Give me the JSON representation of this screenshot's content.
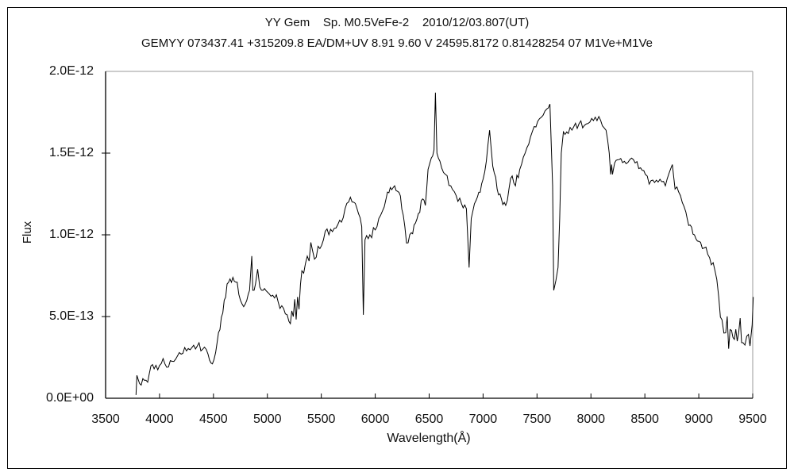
{
  "header": {
    "line1": "YY Gem    Sp. M0.5VeFe-2    2010/12/03.807(UT)",
    "line2": "GEMYY 073437.41 +315209.8 EA/DM+UV 8.91 9.60 V 24595.8172 0.81428254 07 M1Ve+M1Ve"
  },
  "chart_data": {
    "type": "line",
    "title": "YY Gem    Sp. M0.5VeFe-2    2010/12/03.807(UT)",
    "subtitle": "GEMYY 073437.41 +315209.8 EA/DM+UV 8.91 9.60 V 24595.8172 0.81428254 07 M1Ve+M1Ve",
    "xlabel": "Wavelength(Å)",
    "ylabel": "Flux",
    "grid": false,
    "legend": "none",
    "line_color": "#000000",
    "background_color": "#ffffff",
    "x_range": [
      3500,
      9500
    ],
    "y_range_1e12": [
      0,
      2.0
    ],
    "x_ticks": [
      3500,
      4000,
      4500,
      5000,
      5500,
      6000,
      6500,
      7000,
      7500,
      8000,
      8500,
      9000,
      9500
    ],
    "x_tick_labels": [
      "3500",
      "4000",
      "4500",
      "5000",
      "5500",
      "6000",
      "6500",
      "7000",
      "7500",
      "8000",
      "8500",
      "9000",
      "9500"
    ],
    "y_ticks_1e12": [
      0,
      0.5,
      1.0,
      1.5,
      2.0
    ],
    "y_tick_labels": [
      "0.0E+00",
      "5.0E-13",
      "1.0E-12",
      "1.5E-12",
      "2.0E-12"
    ],
    "points_format": [
      "wavelength_angstrom",
      "flux_units_of_1e-12",
      "noise_amplitude_1e-12"
    ],
    "series": [
      {
        "name": "spectrum",
        "points": [
          [
            3782,
            0.02,
            0
          ],
          [
            3790,
            0.14,
            0.05
          ],
          [
            3815,
            0.09,
            0.06
          ],
          [
            3845,
            0.12,
            0.06
          ],
          [
            3875,
            0.11,
            0.05
          ],
          [
            3905,
            0.15,
            0.05
          ],
          [
            3950,
            0.18,
            0.04
          ],
          [
            4000,
            0.2,
            0.04
          ],
          [
            4050,
            0.21,
            0.035
          ],
          [
            4100,
            0.23,
            0.035
          ],
          [
            4150,
            0.24,
            0.035
          ],
          [
            4200,
            0.27,
            0.03
          ],
          [
            4250,
            0.29,
            0.03
          ],
          [
            4300,
            0.31,
            0.03
          ],
          [
            4350,
            0.32,
            0.03
          ],
          [
            4400,
            0.3,
            0.025
          ],
          [
            4450,
            0.27,
            0.025
          ],
          [
            4490,
            0.21,
            0.02
          ],
          [
            4520,
            0.28,
            0.03
          ],
          [
            4560,
            0.42,
            0.04
          ],
          [
            4600,
            0.6,
            0.04
          ],
          [
            4640,
            0.71,
            0.03
          ],
          [
            4680,
            0.74,
            0.025
          ],
          [
            4720,
            0.71,
            0.025
          ],
          [
            4750,
            0.6,
            0.02
          ],
          [
            4780,
            0.56,
            0.02
          ],
          [
            4810,
            0.6,
            0.02
          ],
          [
            4835,
            0.66,
            0.012
          ],
          [
            4855,
            0.87,
            0
          ],
          [
            4865,
            0.66,
            0.02
          ],
          [
            4890,
            0.7,
            0.03
          ],
          [
            4910,
            0.79,
            0
          ],
          [
            4930,
            0.68,
            0.03
          ],
          [
            4960,
            0.66,
            0.03
          ],
          [
            5000,
            0.65,
            0.03
          ],
          [
            5050,
            0.63,
            0.03
          ],
          [
            5100,
            0.59,
            0.03
          ],
          [
            5150,
            0.55,
            0.05
          ],
          [
            5200,
            0.47,
            0.05
          ],
          [
            5240,
            0.5,
            0.08
          ],
          [
            5280,
            0.62,
            0.16
          ],
          [
            5320,
            0.78,
            0.13
          ],
          [
            5370,
            0.87,
            0.1
          ],
          [
            5420,
            0.9,
            0.07
          ],
          [
            5470,
            0.93,
            0.06
          ],
          [
            5520,
            0.97,
            0.05
          ],
          [
            5570,
            1.0,
            0.05
          ],
          [
            5620,
            1.04,
            0.045
          ],
          [
            5670,
            1.09,
            0.04
          ],
          [
            5720,
            1.16,
            0.04
          ],
          [
            5770,
            1.23,
            0.035
          ],
          [
            5800,
            1.2,
            0.03
          ],
          [
            5845,
            1.13,
            0.025
          ],
          [
            5875,
            1.05,
            0.012
          ],
          [
            5890,
            0.51,
            0
          ],
          [
            5905,
            0.97,
            0.02
          ],
          [
            5950,
            1.0,
            0.03
          ],
          [
            6000,
            1.03,
            0.03
          ],
          [
            6050,
            1.12,
            0.03
          ],
          [
            6100,
            1.22,
            0.03
          ],
          [
            6140,
            1.29,
            0.025
          ],
          [
            6180,
            1.3,
            0.025
          ],
          [
            6220,
            1.26,
            0.03
          ],
          [
            6260,
            1.12,
            0.03
          ],
          [
            6290,
            0.95,
            0.02
          ],
          [
            6320,
            1.0,
            0.03
          ],
          [
            6360,
            1.06,
            0.035
          ],
          [
            6400,
            1.13,
            0.035
          ],
          [
            6440,
            1.22,
            0.035
          ],
          [
            6465,
            1.18,
            0.03
          ],
          [
            6490,
            1.4,
            0.03
          ],
          [
            6520,
            1.47,
            0.02
          ],
          [
            6545,
            1.52,
            0.012
          ],
          [
            6558,
            1.87,
            0
          ],
          [
            6572,
            1.5,
            0.02
          ],
          [
            6600,
            1.45,
            0.025
          ],
          [
            6650,
            1.37,
            0.025
          ],
          [
            6700,
            1.3,
            0.025
          ],
          [
            6750,
            1.24,
            0.025
          ],
          [
            6800,
            1.19,
            0.02
          ],
          [
            6845,
            1.16,
            0.015
          ],
          [
            6870,
            0.8,
            0
          ],
          [
            6890,
            1.1,
            0.02
          ],
          [
            6920,
            1.19,
            0.025
          ],
          [
            6960,
            1.26,
            0.03
          ],
          [
            7000,
            1.34,
            0.03
          ],
          [
            7030,
            1.45,
            0.02
          ],
          [
            7060,
            1.64,
            0
          ],
          [
            7090,
            1.42,
            0.03
          ],
          [
            7130,
            1.28,
            0.03
          ],
          [
            7170,
            1.22,
            0.025
          ],
          [
            7210,
            1.18,
            0.025
          ],
          [
            7240,
            1.28,
            0.04
          ],
          [
            7270,
            1.36,
            0.04
          ],
          [
            7300,
            1.3,
            0.04
          ],
          [
            7340,
            1.4,
            0.03
          ],
          [
            7390,
            1.5,
            0.03
          ],
          [
            7440,
            1.6,
            0.025
          ],
          [
            7490,
            1.66,
            0.025
          ],
          [
            7540,
            1.72,
            0.02
          ],
          [
            7590,
            1.77,
            0.02
          ],
          [
            7620,
            1.8,
            0.012
          ],
          [
            7645,
            1.3,
            0
          ],
          [
            7655,
            0.66,
            0.02
          ],
          [
            7675,
            0.72,
            0.09
          ],
          [
            7695,
            0.8,
            0.09
          ],
          [
            7710,
            1.1,
            0.05
          ],
          [
            7725,
            1.5,
            0.02
          ],
          [
            7745,
            1.63,
            0.02
          ],
          [
            7790,
            1.62,
            0.025
          ],
          [
            7840,
            1.66,
            0.025
          ],
          [
            7890,
            1.68,
            0.025
          ],
          [
            7940,
            1.67,
            0.025
          ],
          [
            7990,
            1.69,
            0.025
          ],
          [
            8040,
            1.72,
            0.02
          ],
          [
            8090,
            1.7,
            0.02
          ],
          [
            8140,
            1.64,
            0.02
          ],
          [
            8170,
            1.5,
            0.01
          ],
          [
            8183,
            1.37,
            0
          ],
          [
            8192,
            1.43,
            0
          ],
          [
            8200,
            1.37,
            0
          ],
          [
            8220,
            1.44,
            0.012
          ],
          [
            8260,
            1.46,
            0.02
          ],
          [
            8310,
            1.45,
            0.02
          ],
          [
            8360,
            1.46,
            0.02
          ],
          [
            8410,
            1.44,
            0.02
          ],
          [
            8460,
            1.41,
            0.02
          ],
          [
            8505,
            1.37,
            0.02
          ],
          [
            8540,
            1.31,
            0.02
          ],
          [
            8590,
            1.32,
            0.025
          ],
          [
            8640,
            1.34,
            0.025
          ],
          [
            8690,
            1.3,
            0.025
          ],
          [
            8755,
            1.43,
            0
          ],
          [
            8780,
            1.28,
            0.03
          ],
          [
            8830,
            1.24,
            0.03
          ],
          [
            8880,
            1.14,
            0.03
          ],
          [
            8920,
            1.06,
            0.03
          ],
          [
            8960,
            1.0,
            0.035
          ],
          [
            9000,
            0.96,
            0.035
          ],
          [
            9050,
            0.92,
            0.04
          ],
          [
            9100,
            0.86,
            0.04
          ],
          [
            9150,
            0.78,
            0.04
          ],
          [
            9185,
            0.62,
            0.05
          ],
          [
            9215,
            0.48,
            0.08
          ],
          [
            9250,
            0.4,
            0.13
          ],
          [
            9290,
            0.42,
            0.13
          ],
          [
            9330,
            0.36,
            0.13
          ],
          [
            9370,
            0.4,
            0.13
          ],
          [
            9410,
            0.34,
            0.12
          ],
          [
            9445,
            0.38,
            0.12
          ],
          [
            9475,
            0.32,
            0.1
          ],
          [
            9495,
            0.45,
            0.06
          ],
          [
            9505,
            0.62,
            0
          ]
        ]
      }
    ]
  }
}
